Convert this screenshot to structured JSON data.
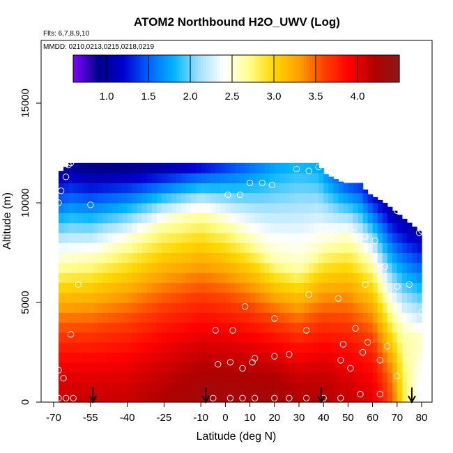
{
  "chart_data": {
    "type": "heatmap",
    "title": "ATOM2 Northbound H2O_UWV (Log)",
    "flights_label": "Flts: 6,7,8,9,10",
    "dates_label": "MMDD: 0210,0213,0215,0218,0219",
    "xlabel": "Latitude (deg N)",
    "ylabel": "Altitude (m)",
    "xlim": [
      -70,
      85
    ],
    "ylim": [
      0,
      17500
    ],
    "x_ticks": [
      -70,
      -55,
      -40,
      -25,
      -10,
      0,
      10,
      20,
      30,
      40,
      50,
      60,
      70,
      80
    ],
    "y_ticks": [
      0,
      5000,
      10000,
      15000
    ],
    "colorbar": {
      "range": [
        0.6,
        4.5
      ],
      "ticks": [
        1.0,
        1.5,
        2.0,
        2.5,
        3.0,
        3.5,
        4.0
      ],
      "tick_labels": [
        "1.0",
        "1.5",
        "2.0",
        "2.5",
        "3.0",
        "3.5",
        "4.0"
      ],
      "colors": [
        "#7f00ff",
        "#00008b",
        "#0000d0",
        "#0060ff",
        "#00b4ff",
        "#a0e0ff",
        "#ffffff",
        "#ffff90",
        "#ffd700",
        "#ffa000",
        "#ff4000",
        "#ff0000",
        "#b00000",
        "#8b1a1a"
      ]
    },
    "arrows_lat": [
      -54,
      -8,
      39,
      76
    ],
    "grid": false,
    "data_extent": {
      "lat": [
        -68,
        80
      ],
      "alt_min": 0,
      "alt_max": 12000
    },
    "top_profile": [
      [
        -68,
        11500
      ],
      [
        -63,
        12000
      ],
      [
        -55,
        12000
      ],
      [
        -50,
        12000
      ],
      [
        -45,
        12000
      ],
      [
        -40,
        12000
      ],
      [
        -35,
        12000
      ],
      [
        -25,
        12000
      ],
      [
        -10,
        12000
      ],
      [
        0,
        12000
      ],
      [
        10,
        12000
      ],
      [
        20,
        12000
      ],
      [
        30,
        12000
      ],
      [
        38,
        12000
      ],
      [
        40,
        11500
      ],
      [
        48,
        11000
      ],
      [
        55,
        11000
      ],
      [
        58,
        10500
      ],
      [
        65,
        10000
      ],
      [
        70,
        9500
      ],
      [
        75,
        9000
      ],
      [
        80,
        8500
      ]
    ],
    "field_profile": [
      {
        "lat": -68,
        "surf": 4.1,
        "h": 7000,
        "top": 1.0
      },
      {
        "lat": -55,
        "surf": 4.1,
        "h": 7200,
        "top": 0.8
      },
      {
        "lat": -40,
        "surf": 4.1,
        "h": 8000,
        "top": 0.8
      },
      {
        "lat": -25,
        "surf": 4.2,
        "h": 9000,
        "top": 0.9
      },
      {
        "lat": -10,
        "surf": 4.3,
        "h": 9500,
        "top": 1.1
      },
      {
        "lat": 0,
        "surf": 4.3,
        "h": 9000,
        "top": 1.3
      },
      {
        "lat": 10,
        "surf": 4.3,
        "h": 8200,
        "top": 1.5
      },
      {
        "lat": 20,
        "surf": 4.3,
        "h": 7200,
        "top": 1.7
      },
      {
        "lat": 30,
        "surf": 4.2,
        "h": 6800,
        "top": 1.8
      },
      {
        "lat": 40,
        "surf": 4.2,
        "h": 7800,
        "top": 1.7
      },
      {
        "lat": 50,
        "surf": 4.1,
        "h": 8200,
        "top": 1.4
      },
      {
        "lat": 60,
        "surf": 4.0,
        "h": 7000,
        "top": 1.2
      },
      {
        "lat": 68,
        "surf": 3.5,
        "h": 4500,
        "top": 1.0
      },
      {
        "lat": 73,
        "surf": 2.8,
        "h": 3500,
        "top": 1.0
      },
      {
        "lat": 80,
        "surf": 2.3,
        "h": 3000,
        "top": 1.0
      }
    ],
    "samples": [
      [
        -68,
        200
      ],
      [
        -65,
        200
      ],
      [
        -62,
        200
      ],
      [
        -68,
        1600
      ],
      [
        -66,
        1200
      ],
      [
        -63,
        3400
      ],
      [
        -60,
        5900
      ],
      [
        -67,
        7700
      ],
      [
        -68,
        10000
      ],
      [
        -67,
        10600
      ],
      [
        -65,
        11300
      ],
      [
        -55,
        9900
      ],
      [
        -64,
        11900
      ],
      [
        -63,
        12000
      ],
      [
        -5,
        200
      ],
      [
        2,
        200
      ],
      [
        7,
        200
      ],
      [
        12,
        200
      ],
      [
        20,
        200
      ],
      [
        26,
        200
      ],
      [
        33,
        200
      ],
      [
        40,
        200
      ],
      [
        47,
        200
      ],
      [
        55,
        400
      ],
      [
        63,
        400
      ],
      [
        -4,
        3600
      ],
      [
        3,
        3600
      ],
      [
        -3,
        1900
      ],
      [
        2,
        2000
      ],
      [
        7,
        1700
      ],
      [
        11,
        2000
      ],
      [
        12,
        2200
      ],
      [
        20,
        2300
      ],
      [
        26,
        2400
      ],
      [
        8,
        4800
      ],
      [
        20,
        4200
      ],
      [
        33,
        3600
      ],
      [
        34,
        5400
      ],
      [
        -6,
        9700
      ],
      [
        1,
        10400
      ],
      [
        6,
        10400
      ],
      [
        10,
        11000
      ],
      [
        15,
        11000
      ],
      [
        19,
        10900
      ],
      [
        29,
        11700
      ],
      [
        34,
        11600
      ],
      [
        38,
        11800
      ],
      [
        28,
        7600
      ],
      [
        42,
        8500
      ],
      [
        45,
        8500
      ],
      [
        52,
        8500
      ],
      [
        57,
        8300
      ],
      [
        61,
        8100
      ],
      [
        65,
        6800
      ],
      [
        70,
        5800
      ],
      [
        75,
        5900
      ],
      [
        46,
        5200
      ],
      [
        48,
        2900
      ],
      [
        47,
        2100
      ],
      [
        51,
        1700
      ],
      [
        53,
        3700
      ],
      [
        57,
        5900
      ],
      [
        56,
        2500
      ],
      [
        58,
        3000
      ],
      [
        63,
        2100
      ],
      [
        66,
        2800
      ],
      [
        70,
        1300
      ],
      [
        70,
        9600
      ],
      [
        79,
        8500
      ],
      [
        80,
        8600
      ],
      [
        80,
        4500
      ]
    ]
  }
}
